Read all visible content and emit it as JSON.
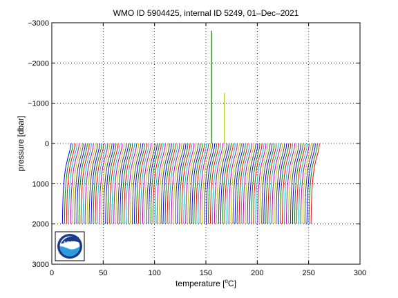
{
  "chart_data": {
    "type": "line",
    "title": "WMO ID 5904425, internal ID 5249, 01–Dec–2021",
    "xlabel_prefix": "temperature [",
    "xlabel_unit": "C]",
    "xlabel_degree": "o",
    "ylabel": "pressure [dbar]",
    "xlim": [
      0,
      300
    ],
    "ylim": [
      -3000,
      3000
    ],
    "y_reversed": true,
    "grid": true,
    "x_ticks": [
      "0",
      "50",
      "100",
      "150",
      "200",
      "250",
      "300"
    ],
    "x_tick_values": [
      0,
      50,
      100,
      150,
      200,
      250,
      300
    ],
    "y_ticks": [
      "−3000",
      "−2000",
      "−1000",
      "0",
      "1000",
      "2000",
      "3000"
    ],
    "y_tick_values": [
      -3000,
      -2000,
      -1000,
      0,
      1000,
      2000,
      3000
    ],
    "profile_offset_start": 8,
    "profile_offset_step": 2,
    "profile_count": 122,
    "profile_shape": {
      "pressure": [
        0,
        100,
        200,
        300,
        400,
        500,
        600,
        800,
        1000,
        1200,
        1500,
        1700,
        2000
      ],
      "temperature": [
        10.5,
        10.2,
        9.3,
        8.3,
        7.2,
        6.3,
        5.5,
        4.4,
        3.7,
        3.1,
        2.7,
        2.5,
        2.3
      ]
    },
    "series_colors": [
      "#0000ff",
      "#008000",
      "#ff0000",
      "#00bfbf",
      "#bf00bf",
      "#bfbf00",
      "#404040"
    ],
    "spikes": [
      {
        "temperature": 155.5,
        "pressure": [
          0,
          -2800
        ],
        "color": "#008000"
      },
      {
        "temperature": 168.0,
        "pressure": [
          0,
          -1250
        ],
        "color": "#bfbf00"
      }
    ],
    "logo": "noaa-logo"
  }
}
